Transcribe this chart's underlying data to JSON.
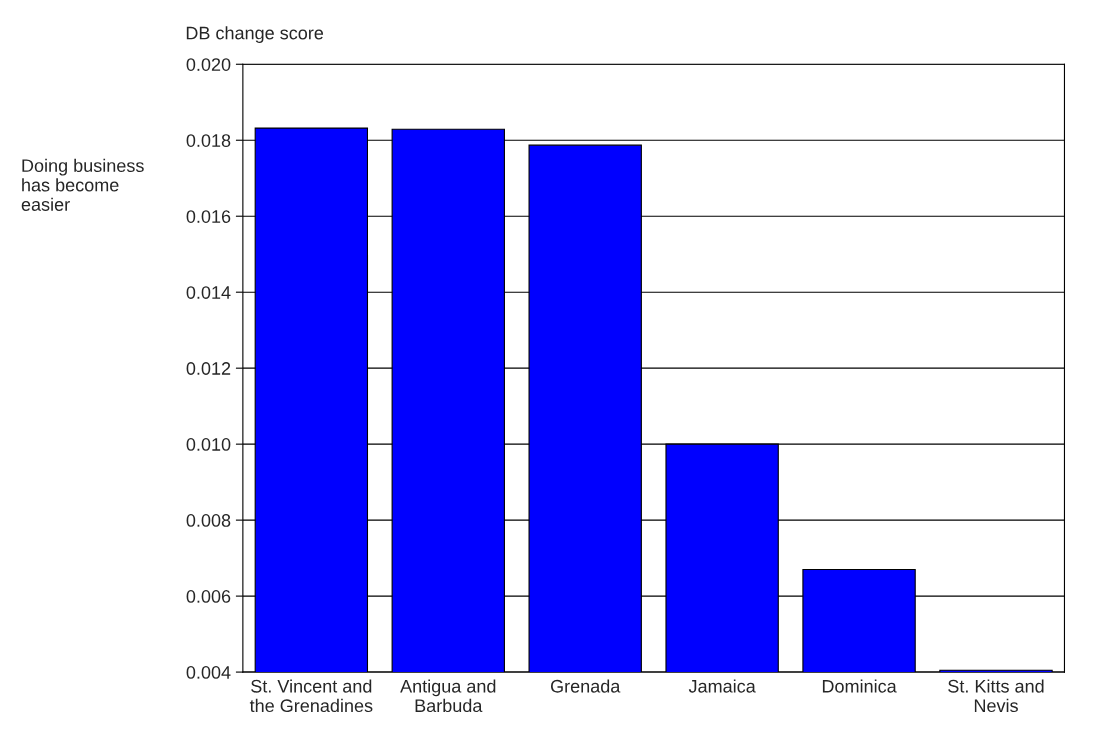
{
  "chart_data": {
    "type": "bar",
    "title": "DB change score",
    "ylabel": "Doing business has become easier",
    "categories": [
      "St. Vincent and the Grenadines",
      "Antigua and Barbuda",
      "Grenada",
      "Jamaica",
      "Dominica",
      "St. Kitts and Nevis"
    ],
    "values": [
      0.01832,
      0.01829,
      0.01787,
      0.01,
      0.0067,
      0.00405
    ],
    "color": "#0000ff",
    "ylim": [
      0.004,
      0.02
    ],
    "yticks": [
      {
        "value": 0.004,
        "label": "0.004"
      },
      {
        "value": 0.006,
        "label": "0.006"
      },
      {
        "value": 0.008,
        "label": "0.008"
      },
      {
        "value": 0.01,
        "label": "0.010"
      },
      {
        "value": 0.012,
        "label": "0.012"
      },
      {
        "value": 0.014,
        "label": "0.014"
      },
      {
        "value": 0.016,
        "label": "0.016"
      },
      {
        "value": 0.018,
        "label": "0.018"
      },
      {
        "value": 0.02,
        "label": "0.020"
      }
    ],
    "grid": "y"
  }
}
